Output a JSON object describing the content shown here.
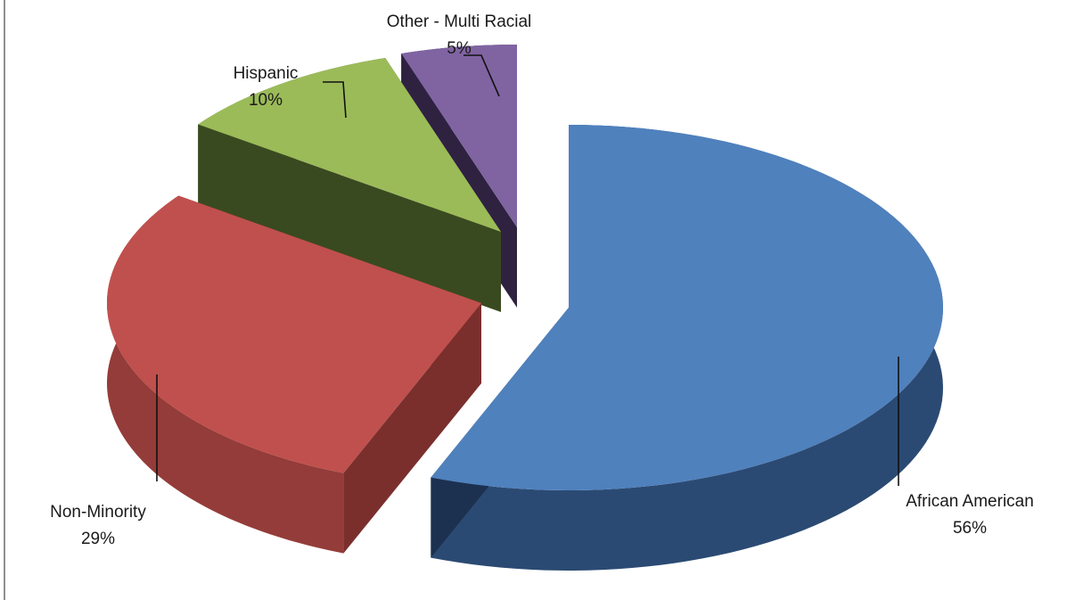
{
  "chart_data": {
    "type": "pie",
    "style": "3d-exploded",
    "slices": [
      {
        "name": "African American",
        "value": 56,
        "label": "56%",
        "color": "#4f81bd",
        "side_color": "#2b4a73",
        "dark_color": "#1c3150"
      },
      {
        "name": "Non-Minority",
        "value": 29,
        "label": "29%",
        "color": "#c0504d",
        "side_color": "#943c39",
        "dark_color": "#7a2f2d"
      },
      {
        "name": "Hispanic",
        "value": 10,
        "label": "10%",
        "color": "#9bbb59",
        "side_color": "#4a5c2a",
        "dark_color": "#3a4a20"
      },
      {
        "name": "Other - Multi Racial",
        "value": 5,
        "label": "5%",
        "color": "#8064a2",
        "side_color": "#3d2e52",
        "dark_color": "#2e2240"
      }
    ],
    "legend": "none",
    "labels": "outside-with-leader-lines"
  }
}
